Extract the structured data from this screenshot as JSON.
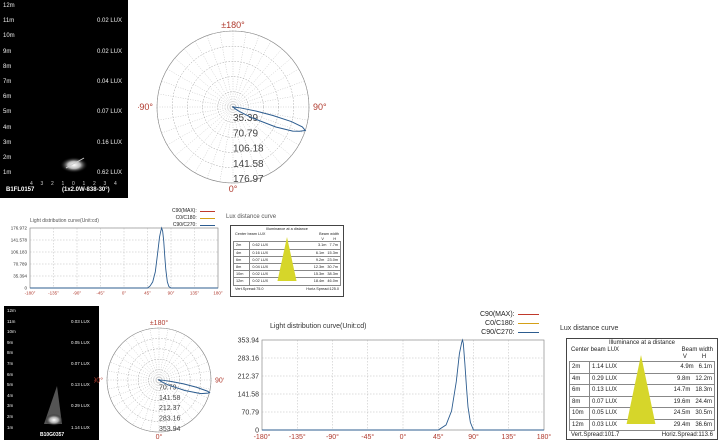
{
  "chart_data": [
    {
      "type": "heatmap",
      "panel": "top-dark",
      "distances": [
        "12m",
        "11m",
        "10m",
        "9m",
        "8m",
        "7m",
        "6m",
        "5m",
        "4m",
        "3m",
        "2m",
        "1m"
      ],
      "lux_values": [
        {
          "d": "11m",
          "text": "0.02 LUX"
        },
        {
          "d": "9m",
          "text": "0.02 LUX"
        },
        {
          "d": "7m",
          "text": "0.04 LUX"
        },
        {
          "d": "5m",
          "text": "0.07 LUX"
        },
        {
          "d": "3m",
          "text": "0.16 LUX"
        },
        {
          "d": "1m",
          "text": "0.62 LUX"
        }
      ],
      "x_ticks": [
        "4",
        "3",
        "2",
        "1",
        "0",
        "1",
        "2",
        "3",
        "4"
      ],
      "model": "B1FL0157",
      "spec": "(1x2.0W-838-30°)"
    },
    {
      "type": "line",
      "panel": "top-polar",
      "angle_labels": {
        "top": "±180°",
        "left": "-90°",
        "right": "90°",
        "bottom": "0°"
      },
      "radial_labels": [
        "35.39",
        "70.79",
        "106.18",
        "141.58",
        "176.97"
      ],
      "rmax": 176.97,
      "series": [
        {
          "name": "C90/C270",
          "curve": [
            [
              45,
              0
            ],
            [
              50,
              6
            ],
            [
              55,
              18
            ],
            [
              60,
              48
            ],
            [
              65,
              110
            ],
            [
              68,
              150
            ],
            [
              70,
              165
            ],
            [
              72,
              176.97
            ],
            [
              74,
              168
            ],
            [
              76,
              140
            ],
            [
              78,
              95
            ],
            [
              80,
              55
            ],
            [
              83,
              18
            ],
            [
              86,
              4
            ],
            [
              90,
              0
            ]
          ]
        }
      ]
    },
    {
      "type": "line",
      "panel": "top-cartesian",
      "title": "Light distribution curve(Unit:cd)",
      "legend": [
        "C90(MAX):",
        "C0/C180:",
        "C90/C270:"
      ],
      "legend_colors": [
        "#c0392b",
        "#d4a017",
        "#2c5c8f"
      ],
      "yticks": [
        "176.972",
        "141.578",
        "106.183",
        "70.789",
        "35.394",
        "0"
      ],
      "ymax": 176.972,
      "xticks": [
        "-180°",
        "-135°",
        "-90°",
        "-45°",
        "0°",
        "45°",
        "90°",
        "135°",
        "180°"
      ],
      "xlim": [
        -180,
        180
      ],
      "series": [
        {
          "name": "C90/C270",
          "points": [
            [
              -180,
              0
            ],
            [
              45,
              0
            ],
            [
              50,
              6
            ],
            [
              55,
              18
            ],
            [
              60,
              48
            ],
            [
              65,
              110
            ],
            [
              68,
              150
            ],
            [
              70,
              165
            ],
            [
              72,
              176.972
            ],
            [
              74,
              168
            ],
            [
              76,
              140
            ],
            [
              78,
              95
            ],
            [
              80,
              55
            ],
            [
              83,
              18
            ],
            [
              86,
              4
            ],
            [
              90,
              0
            ],
            [
              180,
              0
            ]
          ]
        }
      ]
    },
    {
      "type": "table",
      "panel": "top-lux",
      "title": "Lux distance curve",
      "heading": "Illuminance at a distance",
      "col_left": "Center beam LUX",
      "col_right": "Beam width",
      "col_v": "V",
      "col_h": "H",
      "rows": [
        {
          "d": "2m",
          "lux": "0.62 LUX",
          "v": "3.1m",
          "h": "7.7m"
        },
        {
          "d": "4m",
          "lux": "0.16 LUX",
          "v": "6.1m",
          "h": "15.3m"
        },
        {
          "d": "6m",
          "lux": "0.07 LUX",
          "v": "9.2m",
          "h": "23.0m"
        },
        {
          "d": "8m",
          "lux": "0.04 LUX",
          "v": "12.3m",
          "h": "30.7m"
        },
        {
          "d": "10m",
          "lux": "0.02 LUX",
          "v": "15.3m",
          "h": "38.3m"
        },
        {
          "d": "12m",
          "lux": "0.02 LUX",
          "v": "18.4m",
          "h": "46.0m"
        }
      ],
      "footer_left": "Vert.Spread:75.0",
      "footer_right": "Horiz.Spread:125.0"
    },
    {
      "type": "heatmap",
      "panel": "bottom-dark",
      "distances": [
        "12m",
        "11m",
        "10m",
        "9m",
        "8m",
        "7m",
        "6m",
        "5m",
        "4m",
        "3m",
        "2m",
        "1m"
      ],
      "lux_values": [
        {
          "d": "11m",
          "text": "0.03 LUX"
        },
        {
          "d": "9m",
          "text": "0.05 LUX"
        },
        {
          "d": "7m",
          "text": "0.07 LUX"
        },
        {
          "d": "5m",
          "text": "0.13 LUX"
        },
        {
          "d": "3m",
          "text": "0.29 LUX"
        },
        {
          "d": "1m",
          "text": "1.14 LUX"
        }
      ],
      "model": "B10G0357"
    },
    {
      "type": "line",
      "panel": "bottom-polar",
      "angle_labels": {
        "top": "±180°",
        "left": "-90°",
        "right": "90°",
        "bottom": "0°"
      },
      "radial_labels": [
        "70.79",
        "141.58",
        "212.37",
        "283.16",
        "353.94"
      ],
      "rmax": 353.94,
      "series": [
        {
          "name": "C90/C270",
          "curve": [
            [
              45,
              0
            ],
            [
              55,
              20
            ],
            [
              62,
              75
            ],
            [
              68,
              190
            ],
            [
              72,
              300
            ],
            [
              75,
              345
            ],
            [
              76,
              353.94
            ],
            [
              77,
              340
            ],
            [
              79,
              260
            ],
            [
              81,
              170
            ],
            [
              83,
              90
            ],
            [
              86,
              30
            ],
            [
              90,
              0
            ]
          ]
        }
      ]
    },
    {
      "type": "line",
      "panel": "bottom-cartesian",
      "title": "Light distribution curve(Unit:cd)",
      "legend": [
        "C90(MAX):",
        "C0/C180:",
        "C90/C270:"
      ],
      "legend_colors": [
        "#c0392b",
        "#d4a017",
        "#2c5c8f"
      ],
      "yticks": [
        "353.94",
        "283.16",
        "212.37",
        "141.58",
        "70.79",
        "0"
      ],
      "ymax": 353.94,
      "xticks": [
        "-180°",
        "-135°",
        "-90°",
        "-45°",
        "0°",
        "45°",
        "90°",
        "135°",
        "180°"
      ],
      "xlim": [
        -180,
        180
      ],
      "series": [
        {
          "name": "C90/C270",
          "points": [
            [
              -180,
              0
            ],
            [
              45,
              0
            ],
            [
              55,
              20
            ],
            [
              62,
              75
            ],
            [
              68,
              190
            ],
            [
              72,
              300
            ],
            [
              75,
              345
            ],
            [
              76,
              353.94
            ],
            [
              77,
              340
            ],
            [
              79,
              260
            ],
            [
              81,
              170
            ],
            [
              83,
              90
            ],
            [
              86,
              30
            ],
            [
              90,
              0
            ],
            [
              180,
              0
            ]
          ]
        }
      ]
    },
    {
      "type": "table",
      "panel": "bottom-lux",
      "title": "Lux distance curve",
      "heading": "Illuminance at a distance",
      "col_left": "Center beam LUX",
      "col_right": "Beam width",
      "col_v": "V",
      "col_h": "H",
      "rows": [
        {
          "d": "2m",
          "lux": "1.14 LUX",
          "v": "4.9m",
          "h": "6.1m"
        },
        {
          "d": "4m",
          "lux": "0.29 LUX",
          "v": "9.8m",
          "h": "12.2m"
        },
        {
          "d": "6m",
          "lux": "0.13 LUX",
          "v": "14.7m",
          "h": "18.3m"
        },
        {
          "d": "8m",
          "lux": "0.07 LUX",
          "v": "19.6m",
          "h": "24.4m"
        },
        {
          "d": "10m",
          "lux": "0.05 LUX",
          "v": "24.5m",
          "h": "30.5m"
        },
        {
          "d": "12m",
          "lux": "0.03 LUX",
          "v": "29.4m",
          "h": "36.6m"
        }
      ],
      "footer_left": "Vert.Spread:101.7",
      "footer_right": "Horiz.Spread:113.6"
    }
  ]
}
